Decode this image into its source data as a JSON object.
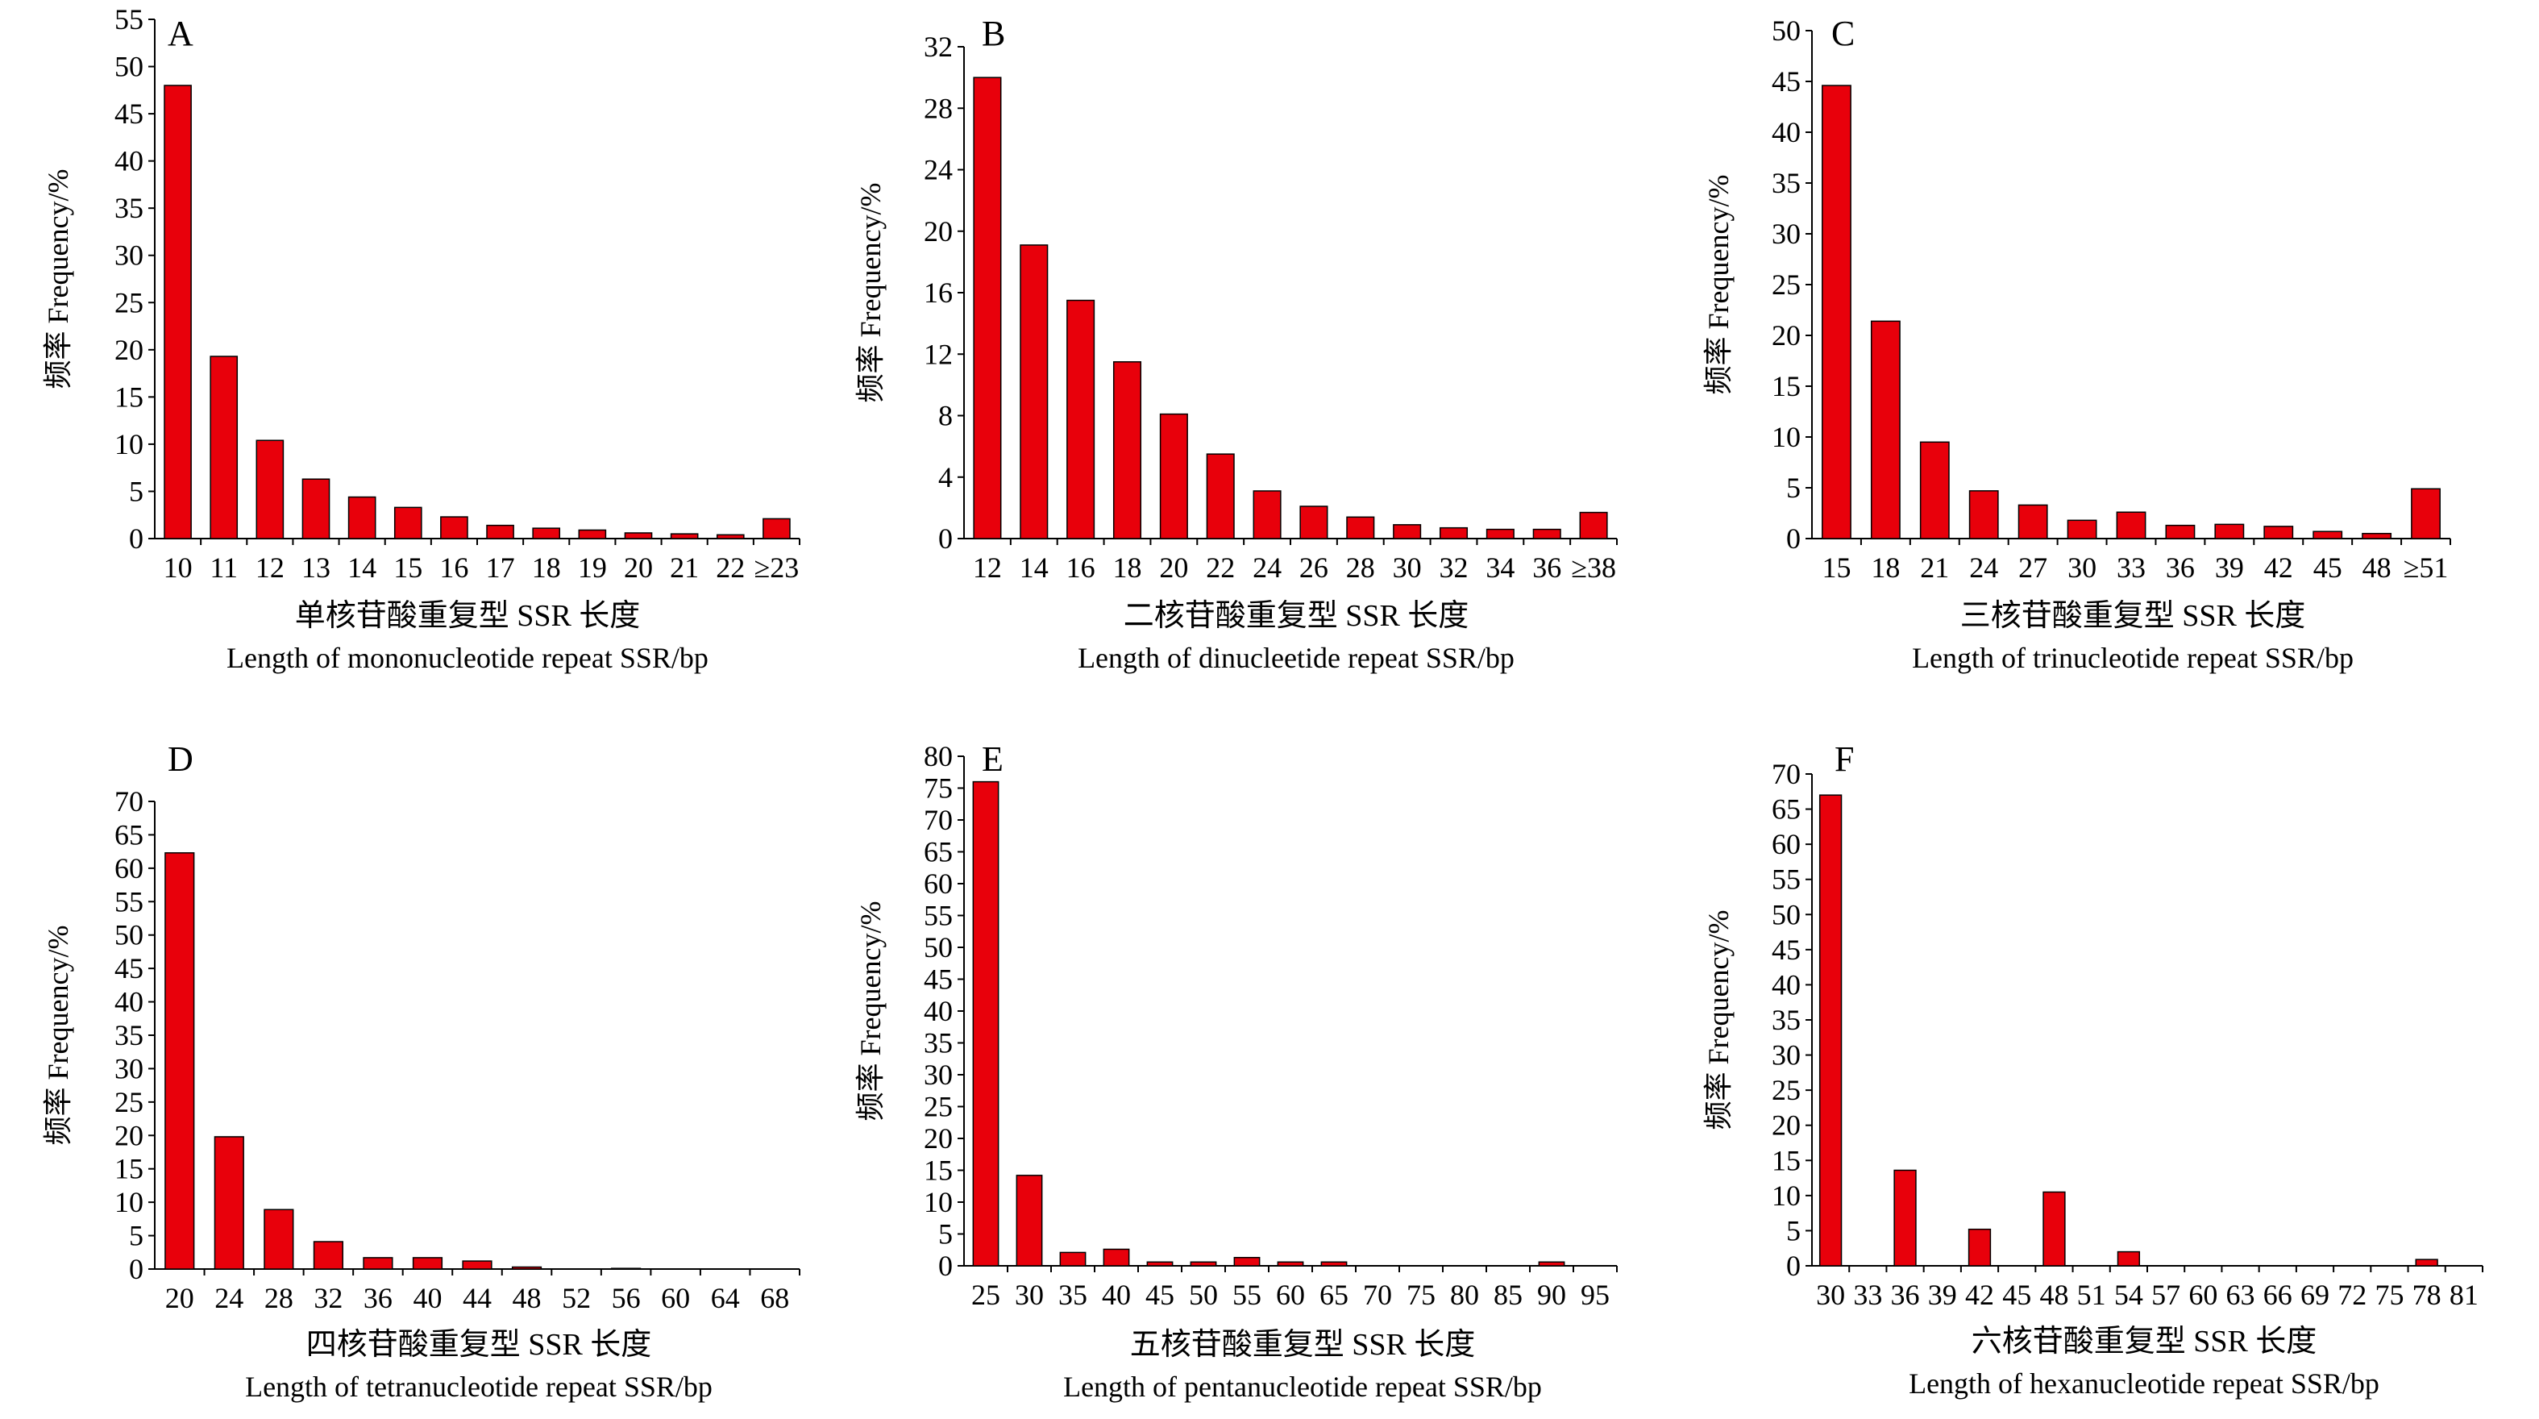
{
  "figure": {
    "bar_color": "#e8000b",
    "bar_stroke": "#000000",
    "axis_color": "#000000"
  },
  "chart_data": [
    {
      "panel": "A",
      "type": "bar",
      "categories": [
        "10",
        "11",
        "12",
        "13",
        "14",
        "15",
        "16",
        "17",
        "18",
        "19",
        "20",
        "21",
        "22",
        "≥23"
      ],
      "values": [
        48.0,
        19.3,
        10.4,
        6.3,
        4.4,
        3.3,
        2.3,
        1.4,
        1.1,
        0.9,
        0.6,
        0.5,
        0.4,
        2.1
      ],
      "yticks": [
        0,
        5,
        10,
        15,
        20,
        25,
        30,
        35,
        40,
        45,
        50,
        55
      ],
      "ylim": [
        0,
        55
      ],
      "ylabel": "频率 Frequency/%",
      "xlabel_cn": "单核苷酸重复型 SSR 长度",
      "xlabel_en": "Length of mononucleotide repeat SSR/bp"
    },
    {
      "panel": "B",
      "type": "bar",
      "categories": [
        "12",
        "14",
        "16",
        "18",
        "20",
        "22",
        "24",
        "26",
        "28",
        "30",
        "32",
        "34",
        "36",
        "≥38"
      ],
      "values": [
        30.0,
        19.1,
        15.5,
        11.5,
        8.1,
        5.5,
        3.1,
        2.1,
        1.4,
        0.9,
        0.7,
        0.6,
        0.6,
        1.7
      ],
      "yticks": [
        0,
        4,
        8,
        12,
        16,
        20,
        24,
        28,
        32
      ],
      "ylim": [
        0,
        32
      ],
      "ylabel": "频率 Frequency/%",
      "xlabel_cn": "二核苷酸重复型 SSR 长度",
      "xlabel_en": "Length of dinucleetide repeat SSR/bp"
    },
    {
      "panel": "C",
      "type": "bar",
      "categories": [
        "15",
        "18",
        "21",
        "24",
        "27",
        "30",
        "33",
        "36",
        "39",
        "42",
        "45",
        "48",
        "≥51"
      ],
      "values": [
        44.6,
        21.4,
        9.5,
        4.7,
        3.3,
        1.8,
        2.6,
        1.3,
        1.4,
        1.2,
        0.7,
        0.5,
        4.9
      ],
      "yticks": [
        0,
        5,
        10,
        15,
        20,
        25,
        30,
        35,
        40,
        45,
        50
      ],
      "ylim": [
        0,
        50
      ],
      "ylabel": "频率 Frequency/%",
      "xlabel_cn": "三核苷酸重复型 SSR 长度",
      "xlabel_en": "Length of trinucleotide repeat SSR/bp"
    },
    {
      "panel": "D",
      "type": "bar",
      "categories": [
        "20",
        "24",
        "28",
        "32",
        "36",
        "40",
        "44",
        "48",
        "52",
        "56",
        "60",
        "64",
        "68"
      ],
      "values": [
        62.3,
        19.8,
        8.9,
        4.1,
        1.7,
        1.7,
        1.2,
        0.3,
        0,
        0.1,
        0,
        0,
        0
      ],
      "yticks": [
        0,
        5,
        10,
        15,
        20,
        25,
        30,
        35,
        40,
        45,
        50,
        55,
        60,
        65,
        70
      ],
      "ylim": [
        0,
        70
      ],
      "ylabel": "频率 Frequency/%",
      "xlabel_cn": "四核苷酸重复型 SSR 长度",
      "xlabel_en": "Length of tetranucleotide repeat SSR/bp"
    },
    {
      "panel": "E",
      "type": "bar",
      "categories": [
        "25",
        "30",
        "35",
        "40",
        "45",
        "50",
        "55",
        "60",
        "65",
        "70",
        "75",
        "80",
        "85",
        "90",
        "95"
      ],
      "values": [
        76.0,
        14.2,
        2.1,
        2.6,
        0.6,
        0.6,
        1.3,
        0.6,
        0.6,
        0,
        0,
        0,
        0,
        0.6,
        0
      ],
      "yticks": [
        0,
        5,
        10,
        15,
        20,
        25,
        30,
        35,
        40,
        45,
        50,
        55,
        60,
        65,
        70,
        75,
        80
      ],
      "ylim": [
        0,
        80
      ],
      "ylabel": "频率 Frequency/%",
      "xlabel_cn": "五核苷酸重复型 SSR 长度",
      "xlabel_en": "Length of pentanucleotide repeat SSR/bp"
    },
    {
      "panel": "F",
      "type": "bar",
      "categories": [
        "30",
        "33",
        "36",
        "39",
        "42",
        "45",
        "48",
        "51",
        "54",
        "57",
        "60",
        "63",
        "66",
        "69",
        "72",
        "75",
        "78",
        "81"
      ],
      "values": [
        67.0,
        0,
        13.6,
        0,
        5.2,
        0,
        10.5,
        0,
        2.0,
        0,
        0,
        0,
        0,
        0,
        0,
        0,
        0.9,
        0
      ],
      "yticks": [
        0,
        5,
        10,
        15,
        20,
        25,
        30,
        35,
        40,
        45,
        50,
        55,
        60,
        65,
        70
      ],
      "ylim": [
        0,
        70
      ],
      "ylabel": "频率 Frequency/%",
      "xlabel_cn": "六核苷酸重复型 SSR 长度",
      "xlabel_en": "Length of hexanucleotide repeat SSR/bp"
    }
  ]
}
